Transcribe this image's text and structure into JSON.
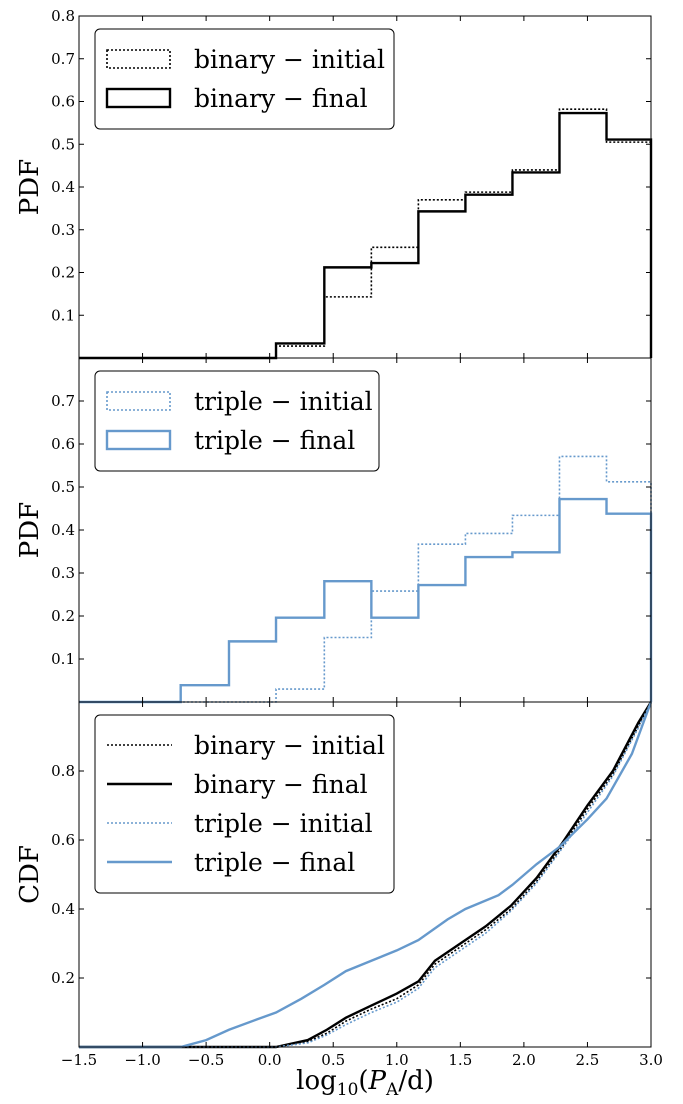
{
  "chart_data": [
    {
      "type": "step",
      "ylabel": "PDF",
      "ylim": [
        0.0,
        0.8
      ],
      "yticks": [
        "0.1",
        "0.2",
        "0.3",
        "0.4",
        "0.5",
        "0.6",
        "0.7",
        "0.8"
      ],
      "legend_position": "top-left",
      "bin_edges": [
        -1.5,
        0.05,
        0.43,
        0.8,
        1.17,
        1.54,
        1.91,
        2.28,
        2.65,
        3.0
      ],
      "series": [
        {
          "name": "binary − initial",
          "color": "#000000",
          "style": "dotted",
          "values": [
            0.0,
            0.028,
            0.143,
            0.259,
            0.37,
            0.388,
            0.44,
            0.582,
            0.505
          ]
        },
        {
          "name": "binary − final",
          "color": "#000000",
          "style": "solid",
          "values": [
            0.0,
            0.034,
            0.212,
            0.222,
            0.343,
            0.382,
            0.434,
            0.573,
            0.511
          ]
        }
      ]
    },
    {
      "type": "step",
      "ylabel": "PDF",
      "ylim": [
        0.0,
        0.8
      ],
      "yticks": [
        "0.1",
        "0.2",
        "0.3",
        "0.4",
        "0.5",
        "0.6",
        "0.7"
      ],
      "legend_position": "top-left",
      "bin_edges": [
        -1.5,
        -0.7,
        -0.32,
        0.05,
        0.43,
        0.8,
        1.17,
        1.54,
        1.91,
        2.28,
        2.65,
        3.0
      ],
      "series": [
        {
          "name": "triple − initial",
          "color": "#6699cc",
          "style": "dotted",
          "values": [
            0.0,
            0.0,
            0.0,
            0.03,
            0.15,
            0.258,
            0.367,
            0.392,
            0.434,
            0.571,
            0.512
          ]
        },
        {
          "name": "triple − final",
          "color": "#6699cc",
          "style": "solid",
          "values": [
            0.0,
            0.039,
            0.141,
            0.196,
            0.281,
            0.196,
            0.272,
            0.337,
            0.348,
            0.472,
            0.438
          ]
        }
      ]
    },
    {
      "type": "line",
      "ylabel": "CDF",
      "xlabel": "log₁₀(P_A/d)",
      "xlim": [
        -1.5,
        3.0
      ],
      "ylim": [
        0.0,
        1.0
      ],
      "xticks": [
        "−1.5",
        "−1.0",
        "−0.5",
        "0.0",
        "0.5",
        "1.0",
        "1.5",
        "2.0",
        "2.5",
        "3.0"
      ],
      "yticks": [
        "0.2",
        "0.4",
        "0.6",
        "0.8"
      ],
      "legend_position": "top-left",
      "series": [
        {
          "name": "binary − initial",
          "color": "#000000",
          "style": "dotted",
          "x": [
            0.05,
            0.3,
            0.45,
            0.6,
            0.8,
            1.0,
            1.17,
            1.3,
            1.5,
            1.7,
            1.9,
            2.1,
            2.3,
            2.5,
            2.7,
            2.9,
            3.0
          ],
          "y": [
            0.0,
            0.015,
            0.04,
            0.075,
            0.11,
            0.14,
            0.18,
            0.24,
            0.29,
            0.34,
            0.4,
            0.48,
            0.58,
            0.69,
            0.79,
            0.93,
            1.0
          ]
        },
        {
          "name": "binary − final",
          "color": "#000000",
          "style": "solid",
          "x": [
            0.05,
            0.3,
            0.45,
            0.6,
            0.8,
            1.0,
            1.17,
            1.3,
            1.5,
            1.7,
            1.9,
            2.1,
            2.3,
            2.5,
            2.7,
            2.9,
            3.0
          ],
          "y": [
            0.0,
            0.02,
            0.05,
            0.085,
            0.12,
            0.155,
            0.19,
            0.25,
            0.3,
            0.35,
            0.41,
            0.49,
            0.59,
            0.7,
            0.8,
            0.94,
            1.0
          ]
        },
        {
          "name": "triple − initial",
          "color": "#6699cc",
          "style": "dotted",
          "x": [
            0.05,
            0.3,
            0.45,
            0.6,
            0.8,
            1.0,
            1.17,
            1.3,
            1.5,
            1.7,
            1.9,
            2.1,
            2.3,
            2.5,
            2.7,
            2.9,
            3.0
          ],
          "y": [
            0.0,
            0.012,
            0.035,
            0.065,
            0.1,
            0.13,
            0.17,
            0.23,
            0.28,
            0.33,
            0.395,
            0.475,
            0.575,
            0.68,
            0.785,
            0.925,
            1.0
          ]
        },
        {
          "name": "triple − final",
          "color": "#6699cc",
          "style": "solid",
          "x": [
            -0.7,
            -0.5,
            -0.32,
            -0.1,
            0.05,
            0.25,
            0.43,
            0.6,
            0.8,
            1.0,
            1.17,
            1.4,
            1.54,
            1.8,
            1.91,
            2.1,
            2.28,
            2.5,
            2.65,
            2.85,
            3.0
          ],
          "y": [
            0.0,
            0.02,
            0.05,
            0.08,
            0.1,
            0.14,
            0.18,
            0.22,
            0.25,
            0.28,
            0.31,
            0.37,
            0.4,
            0.44,
            0.47,
            0.53,
            0.58,
            0.66,
            0.72,
            0.85,
            1.0
          ]
        }
      ]
    }
  ]
}
